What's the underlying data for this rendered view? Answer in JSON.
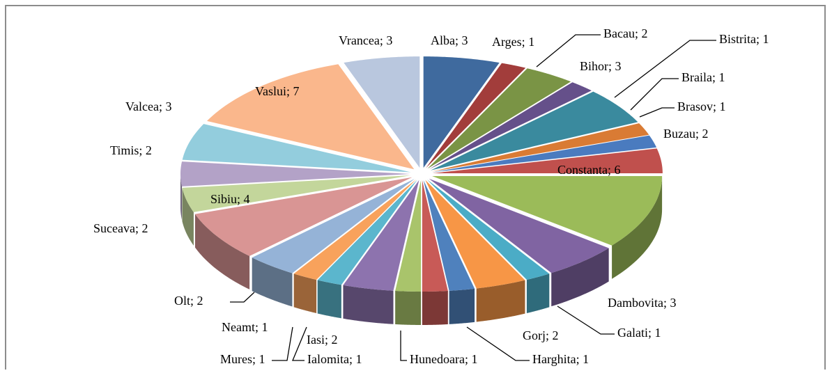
{
  "chart_data": {
    "type": "pie3d",
    "categories": [
      "Alba",
      "Arges",
      "Bacau",
      "Bistrita",
      "Bihor",
      "Braila",
      "Brasov",
      "Buzau",
      "Constanta",
      "Dambovita",
      "Galati",
      "Gorj",
      "Harghita",
      "Hunedoara",
      "Ialomita",
      "Iasi",
      "Mures",
      "Neamt",
      "Olt",
      "Sibiu",
      "Suceava",
      "Timis",
      "Valcea",
      "Vaslui",
      "Vrancea"
    ],
    "values": [
      3,
      1,
      2,
      1,
      3,
      1,
      1,
      2,
      6,
      3,
      1,
      2,
      1,
      1,
      1,
      2,
      1,
      1,
      2,
      4,
      2,
      2,
      3,
      7,
      3
    ],
    "label_separator": "; ",
    "colors": [
      "#3f6a9e",
      "#a23d3b",
      "#7a9445",
      "#65508a",
      "#3a8a9e",
      "#d97b34",
      "#4a7bbf",
      "#c0504d",
      "#9bbb59",
      "#8064a2",
      "#4bacc6",
      "#f79646",
      "#4f81bd",
      "#c85a57",
      "#a9c46b",
      "#8d73ae",
      "#5bb6cd",
      "#f8a25c",
      "#95b3d7",
      "#d99594",
      "#c3d69b",
      "#b3a2c7",
      "#93cddd",
      "#fab78c",
      "#b9c7de"
    ]
  }
}
